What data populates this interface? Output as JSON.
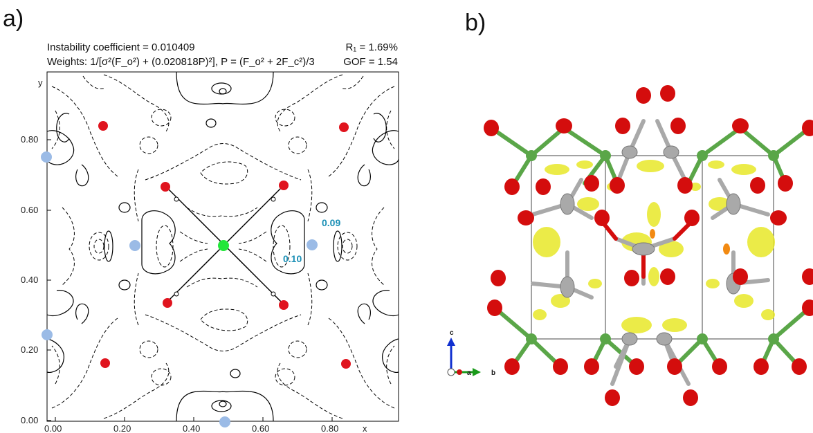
{
  "panel_a": {
    "label": "a)",
    "instability": "Instability coefficient = 0.010409",
    "weights": "Weights: 1/[σ²(F_o²) + (0.020818P)²], P = (F_o² + 2F_c²)/3",
    "r1": "R₁ = 1.69%",
    "gof": "GOF = 1.54",
    "x_label": "x",
    "y_label": "y",
    "x_ticks": [
      "0.00",
      "0.20",
      "0.40",
      "0.60",
      "0.80"
    ],
    "y_ticks": [
      "0.00",
      "0.20",
      "0.40",
      "0.60",
      "0.80"
    ],
    "annotations": [
      "0.09",
      "0.10"
    ],
    "colors": {
      "red_atom": "#e0141e",
      "blue_atom": "#9bbbe6",
      "green_atom": "#22e639",
      "annotation": "#1a8fb5"
    }
  },
  "panel_b": {
    "label": "b)",
    "axes": {
      "c": "c",
      "a": "a",
      "b": "b"
    },
    "colors": {
      "oxygen": "#d40d0d",
      "green": "#5aa648",
      "grey": "#a9a9a9",
      "density": "#e8e829"
    }
  }
}
